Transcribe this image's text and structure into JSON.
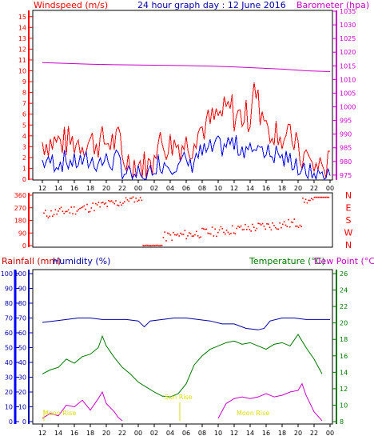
{
  "header": {
    "title": "24 hour graph day : 12 June 2016",
    "left_label": "Windspeed (m/s)",
    "right_label": "Barometer (hpa)"
  },
  "bottom_header": {
    "rainfall": "Rainfall (mm)",
    "humidity": "Humidity (%)",
    "temperature": "Temperature (°C)",
    "dewpoint": "Dew Point (°C)"
  },
  "annotations": {
    "moon_rise": "Moon Rise",
    "sun_rise": "Sun Rise"
  },
  "colors": {
    "windspeed": "#ff0000",
    "gust": "#ff0000",
    "wind_avg": "#0000ff",
    "barometer": "#cc00cc",
    "direction": "#ff0000",
    "humidity": "#0000aa",
    "temperature": "#007700",
    "dewpoint": "#cc00cc",
    "rainfall": "#0000ff",
    "annotation": "#dddd00"
  },
  "chart_data": [
    {
      "type": "line",
      "name": "wind",
      "x_ticks": [
        "12",
        "14",
        "16",
        "18",
        "20",
        "22",
        "00",
        "02",
        "04",
        "06",
        "08",
        "10",
        "12",
        "14",
        "16",
        "18",
        "20",
        "22",
        "00"
      ],
      "y_left_ticks": [
        "0",
        "1",
        "2",
        "3",
        "4",
        "5",
        "6",
        "7",
        "8",
        "9",
        "10",
        "11",
        "12",
        "13",
        "14",
        "15"
      ],
      "y_right_ticks": [
        "975",
        "980",
        "985",
        "990",
        "995",
        "1000",
        "1005",
        "1010",
        "1015",
        "1020",
        "1025",
        "1030",
        "1035"
      ],
      "ylim_left": [
        0,
        15.5
      ],
      "ylim_right": [
        973.5,
        1035
      ],
      "barometer": {
        "x_hours": [
          0,
          2,
          4,
          6,
          8,
          10,
          12,
          14,
          16,
          18,
          20,
          22,
          24
        ],
        "values": [
          1016.2,
          1015.9,
          1015.6,
          1015.4,
          1015.3,
          1015.2,
          1015.1,
          1014.9,
          1014.6,
          1014.2,
          1013.8,
          1013.2,
          1012.9
        ]
      }
    },
    {
      "type": "scatter",
      "name": "wind_direction",
      "y_left_ticks": [
        "0",
        "90",
        "180",
        "270",
        "360"
      ],
      "y_right_ticks": [
        "N",
        "W",
        "S",
        "E",
        "N"
      ],
      "ylim": [
        0,
        360
      ]
    },
    {
      "type": "line",
      "name": "climate",
      "x_ticks": [
        "12",
        "14",
        "16",
        "18",
        "20",
        "22",
        "00",
        "02",
        "04",
        "06",
        "08",
        "10",
        "12",
        "14",
        "16",
        "18",
        "20",
        "22",
        "00"
      ],
      "y_left_ticks": [
        "0",
        "10",
        "20",
        "30",
        "40",
        "50",
        "60",
        "70",
        "80",
        "90",
        "100"
      ],
      "y_right_ticks": [
        "8",
        "10",
        "12",
        "14",
        "16",
        "18",
        "20",
        "22",
        "24",
        "26"
      ],
      "ylim_humidity": [
        0,
        100
      ],
      "ylim_temp": [
        8,
        26
      ],
      "humidity": {
        "x_hours": [
          0,
          1,
          2,
          3,
          4,
          5,
          6,
          7,
          8,
          8.5,
          9,
          10,
          11,
          12,
          13,
          14,
          15,
          16,
          17,
          18,
          18.5,
          19,
          20,
          21,
          22,
          23,
          24
        ],
        "values": [
          67,
          68,
          69,
          70,
          70,
          69,
          69,
          69,
          68,
          64,
          68,
          69,
          70,
          70,
          69,
          68,
          66,
          66,
          63,
          62,
          63,
          68,
          70,
          70,
          69,
          69,
          69
        ]
      },
      "temperature": {
        "x_hours": [
          0,
          1,
          2,
          3,
          4,
          5,
          6,
          7,
          7.5,
          8,
          9,
          10,
          11,
          12,
          13,
          14,
          15,
          16,
          17,
          18,
          19,
          20,
          21,
          22,
          23,
          24,
          25,
          26,
          27,
          28,
          29,
          30,
          31,
          32,
          33,
          34,
          35
        ],
        "values": [
          13.8,
          14.3,
          14.6,
          15.6,
          15.1,
          15.9,
          16.2,
          17.0,
          18.4,
          17.2,
          15.8,
          14.6,
          13.8,
          12.8,
          12.2,
          11.6,
          11.1,
          11.0,
          11.4,
          12.6,
          14.9,
          16.0,
          16.8,
          17.2,
          17.6,
          17.8,
          17.4,
          17.6,
          17.2,
          16.8,
          17.4,
          17.6,
          17.2,
          18.6,
          17.0,
          15.6,
          13.8
        ]
      },
      "dewpoint": {
        "x_hours": [
          0,
          1,
          2,
          3,
          4,
          5,
          6,
          7,
          7.5,
          8,
          9,
          9.5,
          10,
          22,
          23,
          24,
          25,
          26,
          27,
          28,
          29,
          30,
          31,
          32,
          32.5,
          33,
          34,
          35
        ],
        "values": [
          8.4,
          9.0,
          8.7,
          10.0,
          9.8,
          10.6,
          9.4,
          10.8,
          11.6,
          10.2,
          9.2,
          8.5,
          8.1,
          8.4,
          10.2,
          10.8,
          11.0,
          10.8,
          11.0,
          11.4,
          11.0,
          11.2,
          11.6,
          11.8,
          12.6,
          11.2,
          9.2,
          8.1
        ]
      },
      "rainfall": {
        "x_hours": [
          0,
          35
        ],
        "values": [
          0,
          0
        ]
      }
    }
  ]
}
